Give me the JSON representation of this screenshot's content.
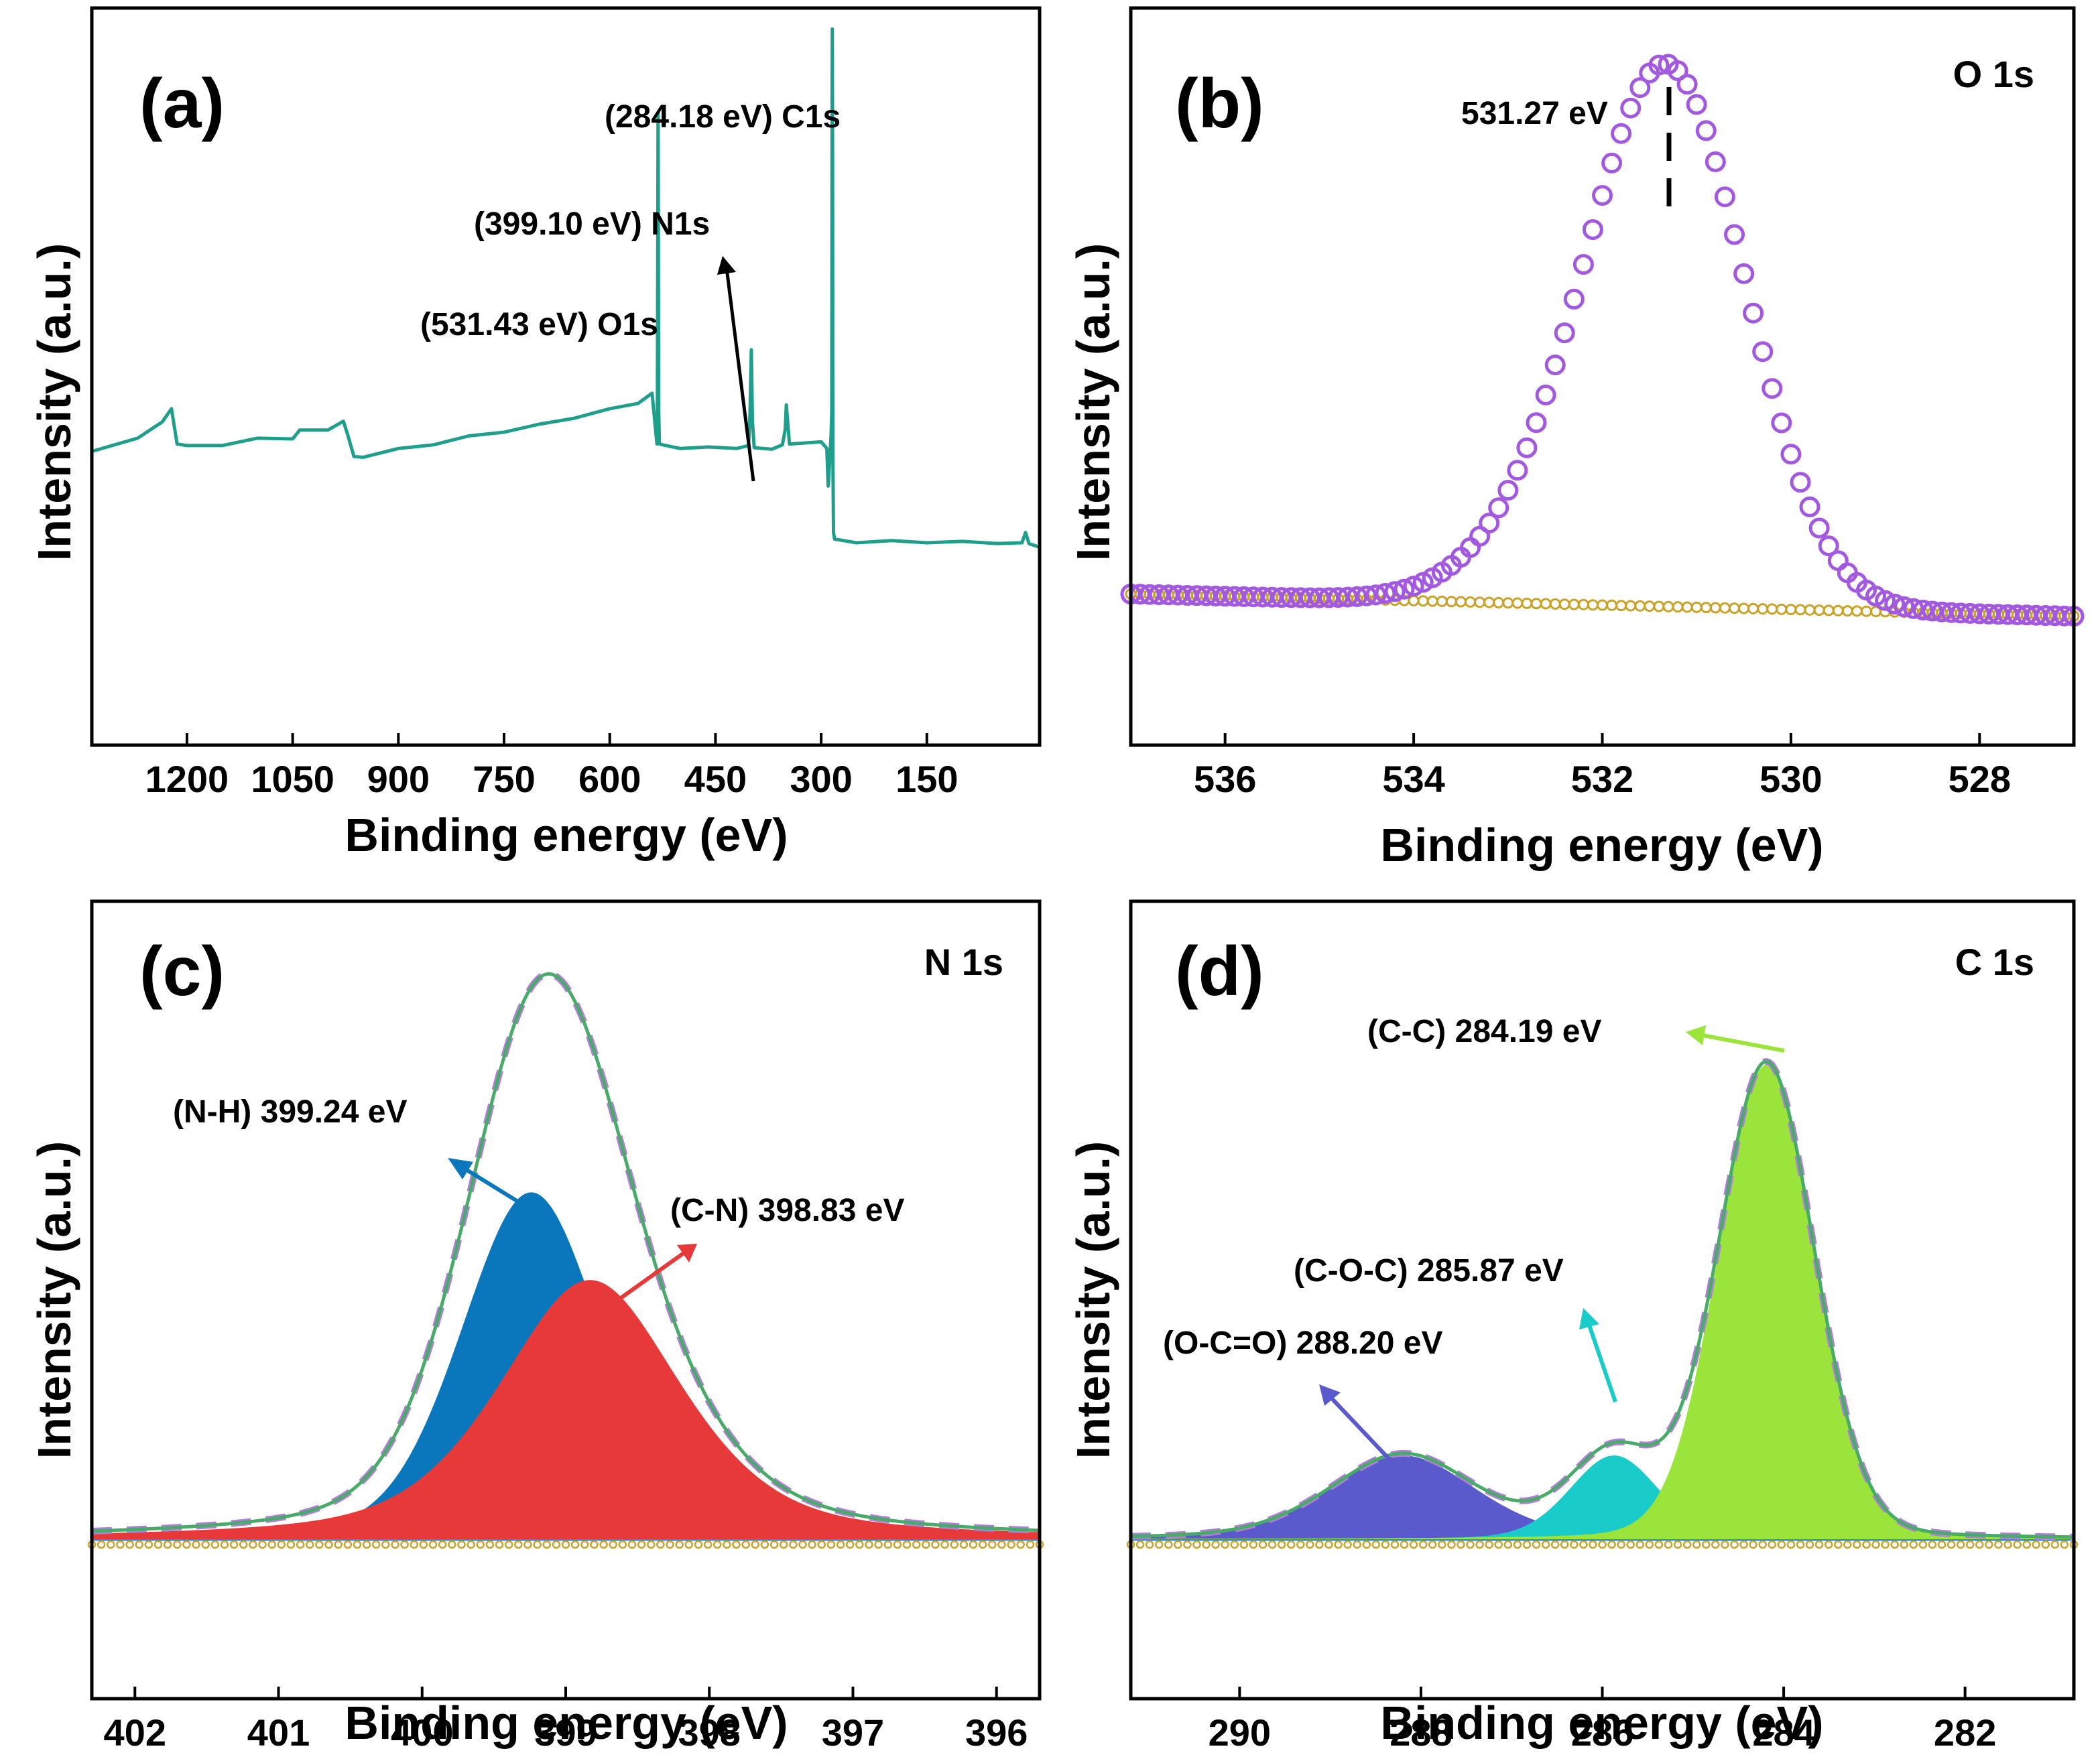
{
  "figure": {
    "x_axis_label": "Binding energy (eV)",
    "y_axis_label": "Intensity (a.u.)"
  },
  "colors": {
    "survey": "#1f9e8c",
    "o1s_marker": "#a259e0",
    "background": "#c9a227",
    "envelope": "#4aaa6a",
    "envelope_dash": "#b07fd6",
    "nh": "#0a77bd",
    "cn": "#e8393a",
    "cc": "#9be43c",
    "coc": "#19ccc9",
    "oco": "#5a5acc",
    "baseline": "#2a8ed8"
  },
  "chart_data": [
    {
      "panel": "(a)",
      "type": "line",
      "title": "",
      "xlabel": "Binding energy (eV)",
      "ylabel": "Intensity (a.u.)",
      "xlim": [
        1335,
        -10
      ],
      "ylim": [
        0,
        100
      ],
      "reversed_x": true,
      "xticks": [
        1200,
        1050,
        900,
        750,
        600,
        450,
        300,
        150
      ],
      "xtick_labels": [
        "1200",
        "1050",
        "900",
        "750",
        "600",
        "450",
        "300",
        "150"
      ],
      "series": [
        {
          "name": "survey",
          "color": "survey",
          "x": [
            1335,
            1270,
            1235,
            1222,
            1214,
            1200,
            1150,
            1100,
            1050,
            1040,
            1000,
            978,
            972,
            963,
            950,
            900,
            850,
            800,
            750,
            700,
            650,
            600,
            560,
            540,
            533,
            532.5,
            531.4,
            530.5,
            529.5,
            525,
            500,
            460,
            420,
            403,
            401,
            399.1,
            397.5,
            395,
            370,
            355,
            351,
            349.5,
            345,
            300,
            292,
            290,
            286,
            285,
            284.5,
            284.2,
            283.8,
            283.4,
            282.5,
            281,
            250,
            200,
            150,
            100,
            50,
            15,
            10,
            5,
            -10
          ],
          "y": [
            40,
            41.5,
            44,
            45.5,
            41,
            40.5,
            40.8,
            41.5,
            41.7,
            42.6,
            42.9,
            43.8,
            42.3,
            39,
            39.2,
            40.1,
            40.9,
            41.8,
            42.6,
            43.4,
            44.5,
            45.5,
            46.5,
            47.6,
            41,
            45,
            86,
            45,
            41,
            40.6,
            40.4,
            40.3,
            40.4,
            40.5,
            45,
            53.5,
            44,
            40.2,
            40.3,
            40.6,
            43,
            46,
            41,
            41,
            40.4,
            35,
            42,
            45,
            86,
            97,
            80,
            40,
            29,
            27.8,
            27.6,
            27.6,
            27.6,
            27.5,
            27.5,
            27.3,
            29,
            27.2,
            27
          ]
        }
      ],
      "annotations": [
        "(531.43 eV) O1s",
        "(399.10 eV) N1s",
        "(284.18 eV) C1s"
      ]
    },
    {
      "panel": "(b)",
      "type": "scatter",
      "title": "O 1s",
      "xlabel": "Binding energy (eV)",
      "ylabel": "Intensity (a.u.)",
      "xlim": [
        537,
        527
      ],
      "ylim": [
        0,
        100
      ],
      "reversed_x": true,
      "xticks": [
        536,
        534,
        532,
        530,
        528
      ],
      "xtick_labels": [
        "536",
        "534",
        "532",
        "530",
        "528"
      ],
      "peak_position": 531.27,
      "peak_amplitude": 69.3,
      "peak_sigma": 0.82,
      "shoulder_position": 532.4,
      "shoulder_amplitude": 10,
      "shoulder_sigma": 0.85,
      "series": [
        {
          "name": "O 1s data",
          "color": "o1s_marker",
          "marker": "circle",
          "x_start": 537,
          "x_end": 527,
          "step": 0.1
        },
        {
          "name": "background",
          "color": "background",
          "marker": "circle-small",
          "y_start": 20.5,
          "y_end": 17.5
        }
      ],
      "annotations": [
        "531.27 eV"
      ]
    },
    {
      "panel": "(c)",
      "type": "area",
      "title": "N 1s",
      "xlabel": "Binding energy (eV)",
      "ylabel": "Intensity (a.u.)",
      "xlim": [
        402.3,
        395.7
      ],
      "ylim": [
        0,
        100
      ],
      "reversed_x": true,
      "xticks": [
        402,
        401,
        400,
        399,
        398,
        397,
        396
      ],
      "xtick_labels": [
        "402",
        "401",
        "400",
        "399",
        "398",
        "397",
        "396"
      ],
      "baseline": 20,
      "components": [
        {
          "name": "(N-H) 399.24 eV",
          "color": "nh",
          "center": 399.24,
          "height": 43.5,
          "fwhm": 1.15,
          "eta": 0.2
        },
        {
          "name": "(C-N) 398.83 eV",
          "color": "cn",
          "center": 398.83,
          "height": 32.5,
          "fwhm": 1.5,
          "eta": 0.5
        }
      ],
      "envelope": {
        "name": "fit",
        "color": "envelope",
        "dash_color": "envelope_dash"
      },
      "annotations": [
        "(N-H) 399.24 eV",
        "(C-N) 398.83 eV"
      ]
    },
    {
      "panel": "(d)",
      "type": "area",
      "title": "C 1s",
      "xlabel": "Binding energy (eV)",
      "ylabel": "Intensity (a.u.)",
      "xlim": [
        291.2,
        280.8
      ],
      "ylim": [
        0,
        100
      ],
      "reversed_x": true,
      "xticks": [
        290,
        288,
        286,
        284,
        282
      ],
      "xtick_labels": [
        "290",
        "288",
        "286",
        "284",
        "282"
      ],
      "baseline": 20,
      "components": [
        {
          "name": "(O-C=O) 288.20 eV",
          "color": "oco",
          "center": 288.2,
          "height": 10.5,
          "fwhm": 1.9,
          "eta": 0.3
        },
        {
          "name": "(C-O-C) 285.87 eV",
          "color": "coc",
          "center": 285.87,
          "height": 10.5,
          "fwhm": 1.15,
          "eta": 0.2
        },
        {
          "name": "(C-C) 284.19 eV",
          "color": "cc",
          "center": 284.19,
          "height": 59.5,
          "fwhm": 1.25,
          "eta": 0.1
        }
      ],
      "envelope": {
        "name": "fit",
        "color": "envelope",
        "dash_color": "envelope_dash"
      },
      "annotations": [
        "(C-C) 284.19 eV",
        "(C-O-C) 285.87 eV",
        "(O-C=O) 288.20 eV"
      ]
    }
  ]
}
